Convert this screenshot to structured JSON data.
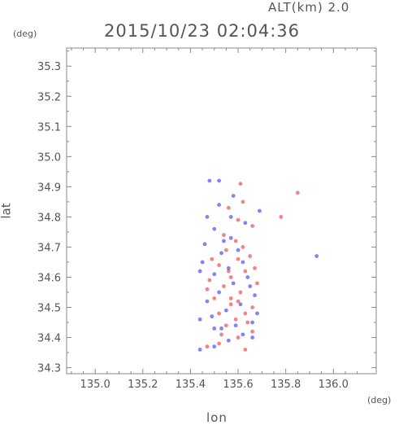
{
  "header": {
    "alt_label": "ALT(km) 2.0",
    "datetime": "2015/10/23 02:04:36"
  },
  "chart_data": {
    "type": "scatter",
    "title": "2015/10/23 02:04:36",
    "xlabel": "lon",
    "ylabel": "lat",
    "x_unit": "(deg)",
    "y_unit": "(deg)",
    "xlim": [
      134.88,
      136.18
    ],
    "ylim": [
      34.28,
      35.36
    ],
    "x_ticks": [
      "135.0",
      "135.2",
      "135.4",
      "135.6",
      "135.8",
      "136.0"
    ],
    "y_ticks": [
      "34.3",
      "34.4",
      "34.5",
      "34.6",
      "34.7",
      "34.8",
      "34.9",
      "35.0",
      "35.1",
      "35.2",
      "35.3"
    ],
    "x_tick_values": [
      135.0,
      135.2,
      135.4,
      135.6,
      135.8,
      136.0
    ],
    "y_tick_values": [
      34.3,
      34.4,
      34.5,
      34.6,
      34.7,
      34.8,
      34.9,
      35.0,
      35.1,
      35.2,
      35.3
    ],
    "grid": true,
    "colors": {
      "positive": "#f05a5a",
      "negative": "#5a5af0",
      "axis": "#888888"
    },
    "series": [
      {
        "color": "positive",
        "points": [
          [
            135.63,
            34.36
          ],
          [
            135.47,
            34.37
          ],
          [
            135.52,
            34.38
          ],
          [
            135.6,
            34.4
          ],
          [
            135.66,
            34.42
          ],
          [
            135.55,
            34.44
          ],
          [
            135.59,
            34.46
          ],
          [
            135.63,
            34.48
          ],
          [
            135.66,
            34.5
          ],
          [
            135.57,
            34.51
          ],
          [
            135.5,
            34.53
          ],
          [
            135.61,
            34.55
          ],
          [
            135.54,
            34.57
          ],
          [
            135.48,
            34.59
          ],
          [
            135.57,
            34.6
          ],
          [
            135.63,
            34.62
          ],
          [
            135.52,
            34.64
          ],
          [
            135.6,
            34.66
          ],
          [
            135.65,
            34.67
          ],
          [
            135.55,
            34.69
          ],
          [
            135.59,
            34.72
          ],
          [
            135.54,
            34.74
          ],
          [
            135.66,
            34.77
          ],
          [
            135.6,
            34.79
          ],
          [
            135.78,
            34.8
          ],
          [
            135.56,
            34.83
          ],
          [
            135.62,
            34.85
          ],
          [
            135.85,
            34.88
          ],
          [
            135.61,
            34.91
          ],
          [
            135.47,
            34.56
          ],
          [
            135.68,
            34.58
          ],
          [
            135.57,
            34.53
          ],
          [
            135.64,
            34.45
          ],
          [
            135.52,
            34.48
          ],
          [
            135.6,
            34.52
          ],
          [
            135.56,
            34.62
          ],
          [
            135.49,
            34.66
          ],
          [
            135.62,
            34.7
          ],
          [
            135.67,
            34.63
          ],
          [
            135.53,
            34.41
          ]
        ]
      },
      {
        "color": "negative",
        "points": [
          [
            135.44,
            34.36
          ],
          [
            135.5,
            34.37
          ],
          [
            135.56,
            34.39
          ],
          [
            135.62,
            34.41
          ],
          [
            135.53,
            34.43
          ],
          [
            135.66,
            34.45
          ],
          [
            135.49,
            34.47
          ],
          [
            135.55,
            34.49
          ],
          [
            135.61,
            34.51
          ],
          [
            135.67,
            34.54
          ],
          [
            135.52,
            34.55
          ],
          [
            135.58,
            34.58
          ],
          [
            135.64,
            34.6
          ],
          [
            135.5,
            34.61
          ],
          [
            135.56,
            34.63
          ],
          [
            135.45,
            34.65
          ],
          [
            135.62,
            34.65
          ],
          [
            135.53,
            34.68
          ],
          [
            135.46,
            34.71
          ],
          [
            135.57,
            34.73
          ],
          [
            135.5,
            34.76
          ],
          [
            135.63,
            34.78
          ],
          [
            135.69,
            34.82
          ],
          [
            135.52,
            34.84
          ],
          [
            135.58,
            34.87
          ],
          [
            135.48,
            34.92
          ],
          [
            135.52,
            34.92
          ],
          [
            135.93,
            34.67
          ],
          [
            135.47,
            34.8
          ],
          [
            135.44,
            34.46
          ],
          [
            135.65,
            34.57
          ],
          [
            135.59,
            34.44
          ],
          [
            135.47,
            34.52
          ],
          [
            135.68,
            34.48
          ],
          [
            135.54,
            34.72
          ],
          [
            135.6,
            34.69
          ],
          [
            135.44,
            34.62
          ],
          [
            135.66,
            34.4
          ],
          [
            135.5,
            34.43
          ],
          [
            135.57,
            34.8
          ]
        ]
      }
    ]
  }
}
